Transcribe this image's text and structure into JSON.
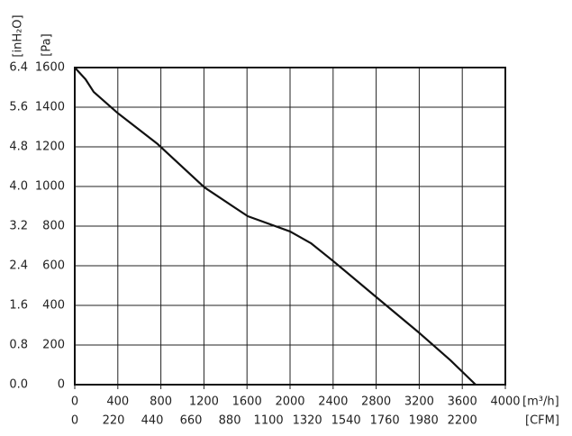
{
  "chart_data": {
    "type": "line",
    "x_label": "[m³/h]",
    "x2_label": "[CFM]",
    "y_label": "[Pa]",
    "y2_label": "[inH₂O]",
    "x": [
      0,
      100,
      176,
      393,
      770,
      1205,
      1607,
      2000,
      2193,
      2402,
      2803,
      3205,
      3490,
      3724
    ],
    "series": [
      {
        "color": "#111111",
        "values": [
          1600,
          1541,
          1477,
          1373,
          1214,
          995,
          850,
          773,
          714,
          623,
          441,
          259,
          123,
          0
        ]
      }
    ],
    "xlim": [
      0,
      4000
    ],
    "xticks": [
      0,
      400,
      800,
      1200,
      1600,
      2000,
      2400,
      2800,
      3200,
      3600,
      4000
    ],
    "x2lim": [
      0,
      2444.44
    ],
    "x2ticks": [
      0,
      220,
      440,
      660,
      880,
      1100,
      1320,
      1540,
      1760,
      1980,
      2200
    ],
    "ylim": [
      0,
      1600
    ],
    "yticks": [
      0,
      200,
      400,
      600,
      800,
      1000,
      1200,
      1400,
      1600
    ],
    "y2lim": [
      0,
      6.4
    ],
    "y2ticks": [
      {
        "value": 0,
        "label": "0.0"
      },
      0.8,
      1.6,
      2.4,
      3.2,
      {
        "value": 4,
        "label": "4.0"
      },
      4.8,
      5.6,
      6.4
    ],
    "grid": true
  }
}
